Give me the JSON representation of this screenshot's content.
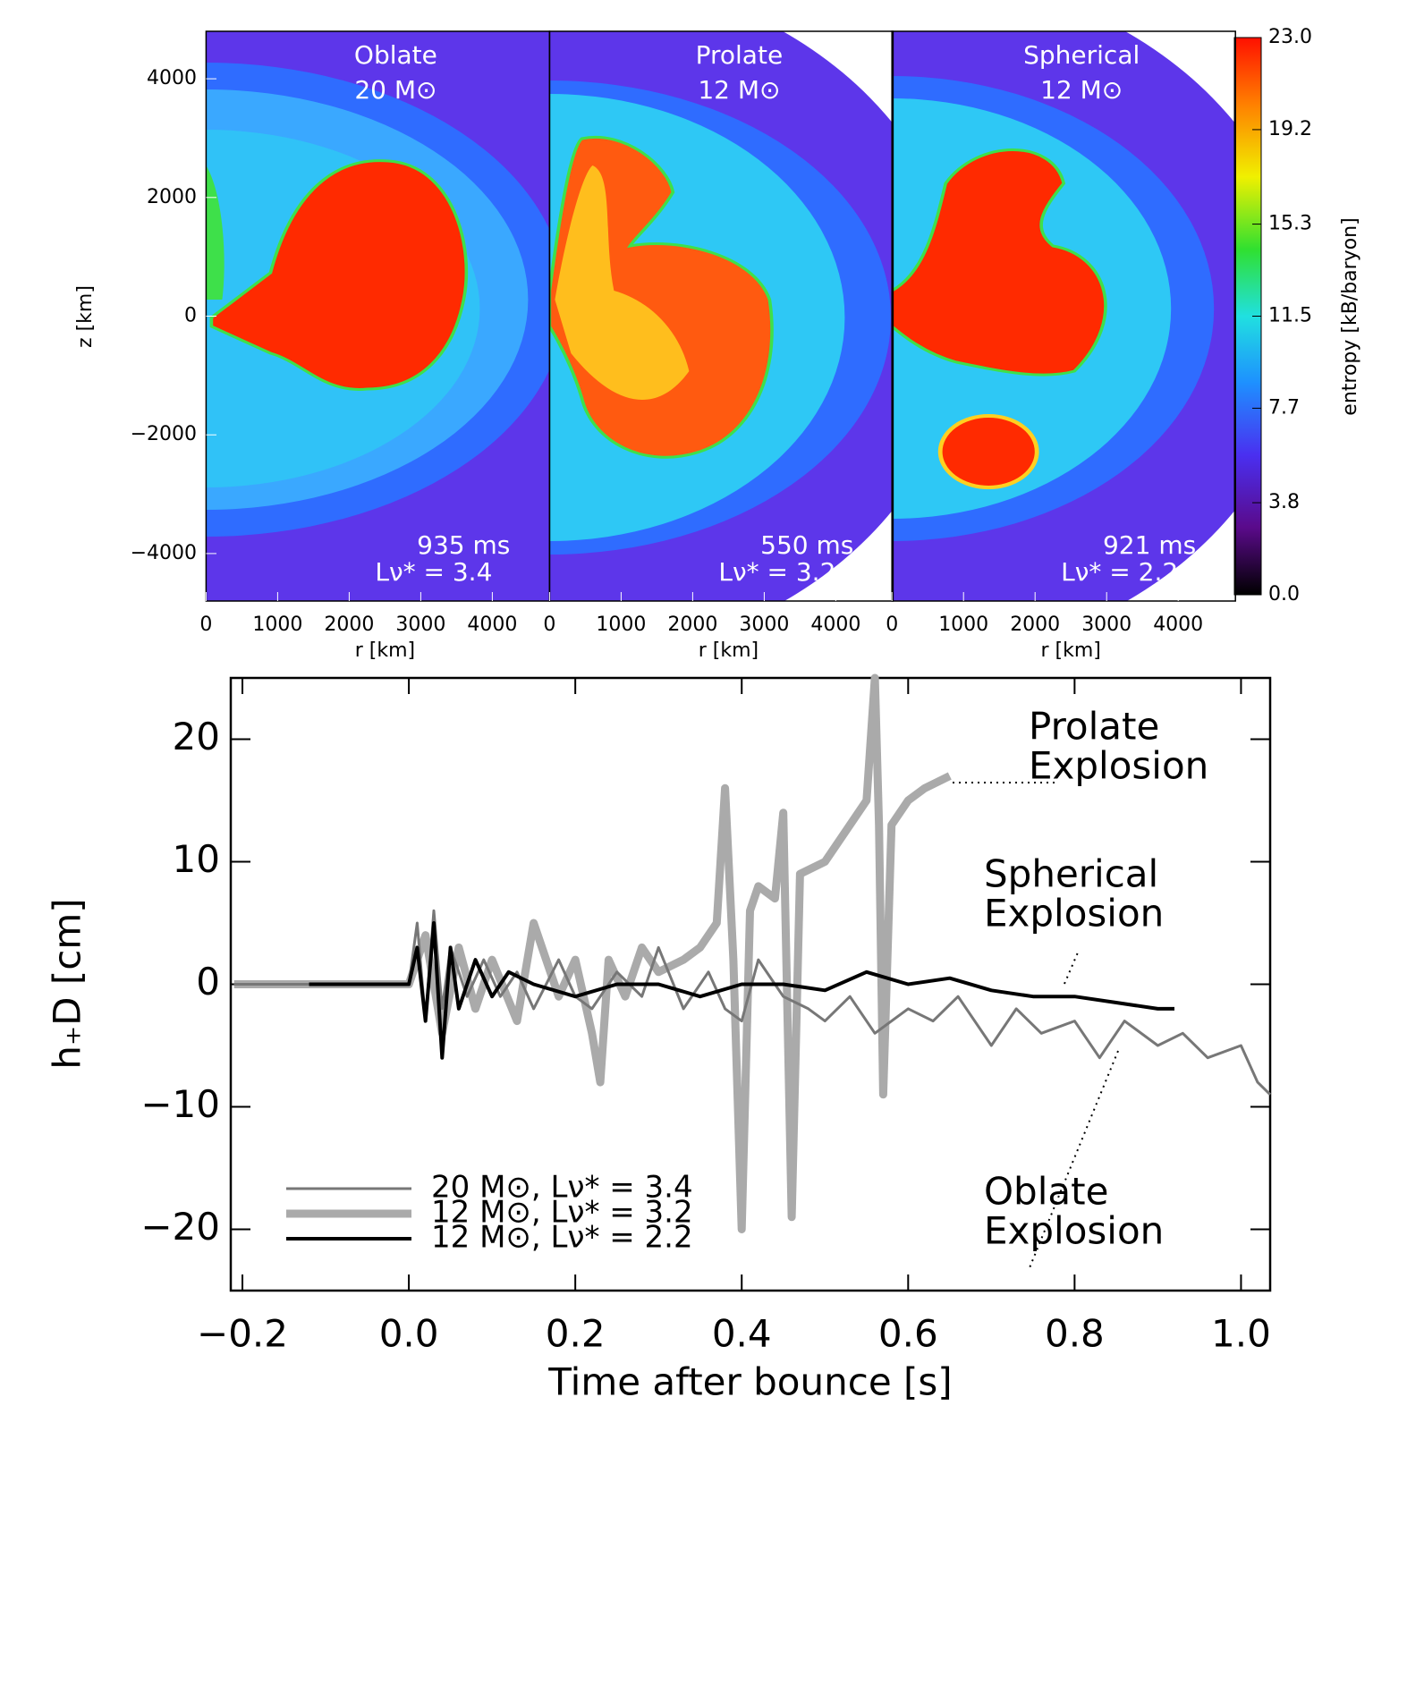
{
  "chart_data": [
    {
      "type": "heatmap",
      "xlabel": "r [km]",
      "ylabel": "z [km]",
      "xlim": [
        0,
        4800
      ],
      "ylim": [
        -4800,
        4800
      ],
      "xticks": [
        0,
        1000,
        2000,
        3000,
        4000
      ],
      "yticks": [
        {
          "value": -4000,
          "label": "−4000"
        },
        {
          "value": -2000,
          "label": "−2000"
        },
        0,
        2000,
        4000
      ],
      "panels": [
        {
          "title": "Oblate",
          "mass": "20 M⊙",
          "time": "935 ms",
          "luminosity": "Lν* = 3.4"
        },
        {
          "title": "Prolate",
          "mass": "12 M⊙",
          "time": "550 ms",
          "luminosity": "Lν* = 3.2"
        },
        {
          "title": "Spherical",
          "mass": "12 M⊙",
          "time": "921 ms",
          "luminosity": "Lν* = 2.2"
        }
      ],
      "colorbar": {
        "label": "entropy [kB/baryon]",
        "lim": [
          0,
          23
        ],
        "ticks": [
          {
            "value": 0,
            "label": "0.0"
          },
          3.8,
          7.7,
          11.5,
          15.3,
          19.2,
          {
            "value": 23,
            "label": "23.0"
          }
        ]
      }
    },
    {
      "type": "line",
      "xlabel": "Time after bounce [s]",
      "ylabel": "h₊D [cm]",
      "xlim": [
        -0.214,
        1.035
      ],
      "ylim": [
        -25,
        25
      ],
      "xticks": [
        {
          "value": -0.2,
          "label": "−0.2"
        },
        {
          "value": 0,
          "label": "0.0"
        },
        0.2,
        0.4,
        0.6,
        0.8,
        {
          "value": 1,
          "label": "1.0"
        }
      ],
      "yticks": [
        {
          "value": -20,
          "label": "−20"
        },
        {
          "value": -10,
          "label": "−10"
        },
        0,
        10,
        20
      ],
      "annotations": [
        [
          "Prolate",
          "Explosion"
        ],
        [
          "Spherical",
          "Explosion"
        ],
        [
          "Oblate",
          "Explosion"
        ]
      ],
      "series": [
        {
          "name": "20 M⊙, Lν* = 3.4",
          "color": "#777777",
          "x": [
            -0.21,
            0,
            0.01,
            0.02,
            0.03,
            0.04,
            0.05,
            0.07,
            0.09,
            0.11,
            0.13,
            0.15,
            0.18,
            0.2,
            0.22,
            0.25,
            0.28,
            0.3,
            0.33,
            0.36,
            0.38,
            0.4,
            0.42,
            0.45,
            0.48,
            0.5,
            0.53,
            0.56,
            0.6,
            0.63,
            0.66,
            0.7,
            0.73,
            0.76,
            0.8,
            0.83,
            0.86,
            0.9,
            0.93,
            0.96,
            1.0,
            1.02,
            1.035
          ],
          "values": [
            0,
            0,
            5,
            -3,
            6,
            -2,
            3,
            -1,
            2,
            -1,
            1,
            -2,
            2,
            -1,
            -2,
            1,
            -1,
            3,
            -2,
            1,
            -2,
            -3,
            2,
            -1,
            -2,
            -3,
            -1,
            -4,
            -2,
            -3,
            -1,
            -5,
            -2,
            -4,
            -3,
            -6,
            -3,
            -5,
            -4,
            -6,
            -5,
            -8,
            -9
          ]
        },
        {
          "name": "12 M⊙, Lν* = 3.2",
          "color": "#aaaaaa",
          "x": [
            -0.21,
            0,
            0.02,
            0.04,
            0.06,
            0.08,
            0.1,
            0.13,
            0.15,
            0.18,
            0.2,
            0.22,
            0.23,
            0.24,
            0.26,
            0.28,
            0.3,
            0.33,
            0.35,
            0.37,
            0.38,
            0.39,
            0.4,
            0.41,
            0.42,
            0.44,
            0.45,
            0.46,
            0.47,
            0.5,
            0.52,
            0.55,
            0.56,
            0.565,
            0.57,
            0.58,
            0.6,
            0.62,
            0.65
          ],
          "values": [
            0,
            0,
            4,
            -4,
            3,
            -2,
            2,
            -3,
            5,
            -1,
            2,
            -4,
            -8,
            2,
            -1,
            3,
            1,
            2,
            3,
            5,
            16,
            2,
            -20,
            6,
            8,
            7,
            14,
            -19,
            9,
            10,
            12,
            15,
            25,
            13,
            -9,
            13,
            15,
            16,
            17
          ]
        },
        {
          "name": "12 M⊙, Lν* = 2.2",
          "color": "#000000",
          "x": [
            -0.12,
            0,
            0.01,
            0.02,
            0.03,
            0.04,
            0.05,
            0.06,
            0.08,
            0.1,
            0.12,
            0.15,
            0.2,
            0.25,
            0.3,
            0.35,
            0.4,
            0.45,
            0.5,
            0.55,
            0.6,
            0.65,
            0.7,
            0.75,
            0.8,
            0.85,
            0.9,
            0.92
          ],
          "values": [
            0,
            0,
            3,
            -3,
            5,
            -6,
            3,
            -2,
            2,
            -1,
            1,
            0,
            -1,
            0,
            0,
            -1,
            0,
            0,
            -0.5,
            1,
            0,
            0.5,
            -0.5,
            -1,
            -1,
            -1.5,
            -2,
            -2
          ]
        }
      ]
    }
  ]
}
